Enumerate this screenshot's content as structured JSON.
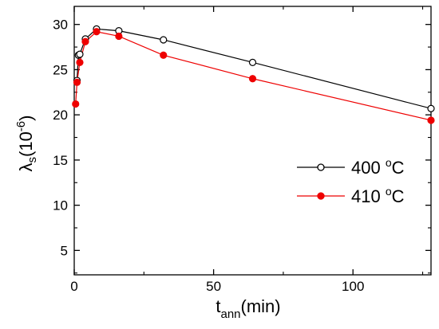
{
  "chart_data": {
    "type": "line",
    "xlabel": {
      "main": "t",
      "sub": "ann",
      "rest": "(min)"
    },
    "ylabel": {
      "main": "λ",
      "sub": "s",
      "rest_open": "(10",
      "sup": "-6",
      "rest_close": ")"
    },
    "xlim": [
      0,
      128
    ],
    "ylim": [
      2.3,
      32
    ],
    "xticks": [
      0,
      50,
      100
    ],
    "yticks": [
      5,
      10,
      15,
      20,
      25,
      30
    ],
    "series": [
      {
        "name": "400 ºC",
        "legend_value": "400 ",
        "legend_unit": "C",
        "legend_sup": "o",
        "color": "#000000",
        "marker": "open-circle",
        "x": [
          1,
          1.5,
          2,
          4,
          8,
          16,
          32,
          64,
          128
        ],
        "y": [
          23.8,
          26.6,
          26.7,
          28.4,
          29.5,
          29.3,
          28.3,
          25.8,
          20.7
        ]
      },
      {
        "name": "410 ºC",
        "legend_value": "410 ",
        "legend_unit": "C",
        "legend_sup": "o",
        "color": "#ee0000",
        "marker": "filled-circle",
        "x": [
          0.5,
          1,
          2,
          4,
          8,
          16,
          32,
          64,
          128
        ],
        "y": [
          21.2,
          23.6,
          25.8,
          28.1,
          29.2,
          28.7,
          26.6,
          24.0,
          19.4
        ]
      }
    ],
    "legend_position": "right-middle",
    "grid": false
  }
}
